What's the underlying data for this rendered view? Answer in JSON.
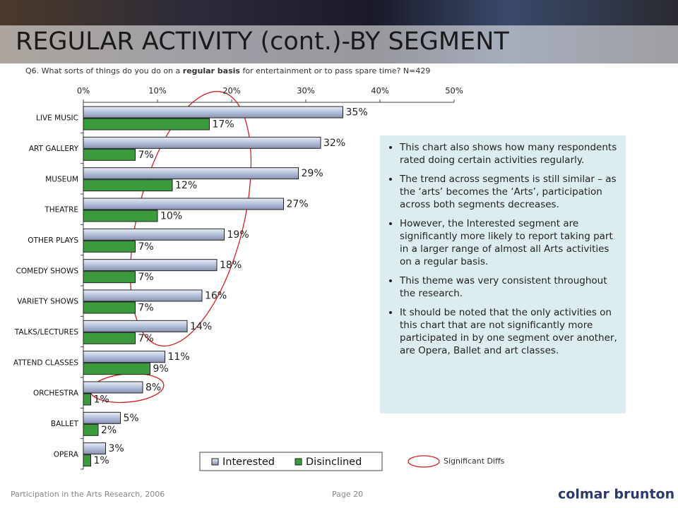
{
  "slide": {
    "title": "REGULAR ACTIVITY (cont.)-BY SEGMENT",
    "question": [
      "Q6. What sorts of things do you do on a ",
      "regular basis",
      " for entertainment or to pass spare time? N=429"
    ],
    "bullets": [
      "This chart also shows how many respondents rated doing certain activities regularly.",
      "The trend across segments is still similar – as the ‘arts’  becomes the ‘Arts’, participation across both segments decreases.",
      "However, the Interested segment are significantly more likely to report taking part in a larger range of almost all Arts activities on a regular basis.",
      "This theme was very consistent throughout the research.",
      "It should be noted that the only activities on this chart that are not significantly more participated in by one segment over another, are Opera, Ballet and art classes."
    ],
    "significance_legend": "Significant Diffs",
    "footer": "Participation in the Arts Research, 2006",
    "page": "Page 20",
    "logo": "colmar brunton"
  },
  "chart_data": {
    "type": "hbar",
    "categories": [
      "LIVE MUSIC",
      "ART GALLERY",
      "MUSEUM",
      "THEATRE",
      "OTHER PLAYS",
      "COMEDY SHOWS",
      "VARIETY SHOWS",
      "TALKS/LECTURES",
      "ATTEND CLASSES",
      "ORCHESTRA",
      "BALLET",
      "OPERA"
    ],
    "series": [
      {
        "name": "Interested",
        "color": "#b4c0da",
        "values": [
          35,
          32,
          29,
          27,
          19,
          18,
          16,
          14,
          11,
          8,
          5,
          3
        ],
        "value_labels": [
          "35%",
          "32%",
          "29%",
          "27%",
          "19%",
          "18%",
          "16%",
          "14%",
          "11%",
          "8%",
          "5%",
          "3%"
        ]
      },
      {
        "name": "Disinclined",
        "color": "#3b9a3b",
        "values": [
          17,
          7,
          12,
          10,
          7,
          7,
          7,
          7,
          9,
          1,
          2,
          1
        ],
        "value_labels": [
          "17%",
          "7%",
          "12%",
          "10%",
          "7%",
          "7%",
          "7%",
          "7%",
          "9%",
          "1%",
          "2%",
          "1%"
        ]
      }
    ],
    "xlim": [
      0,
      50
    ],
    "xticks": [
      {
        "value": 0,
        "label": "0%"
      },
      {
        "value": 10,
        "label": "10%"
      },
      {
        "value": 20,
        "label": "20%"
      },
      {
        "value": 30,
        "label": "30%"
      },
      {
        "value": 40,
        "label": "40%"
      },
      {
        "value": 50,
        "label": "50%"
      }
    ],
    "legend": "bottom"
  }
}
